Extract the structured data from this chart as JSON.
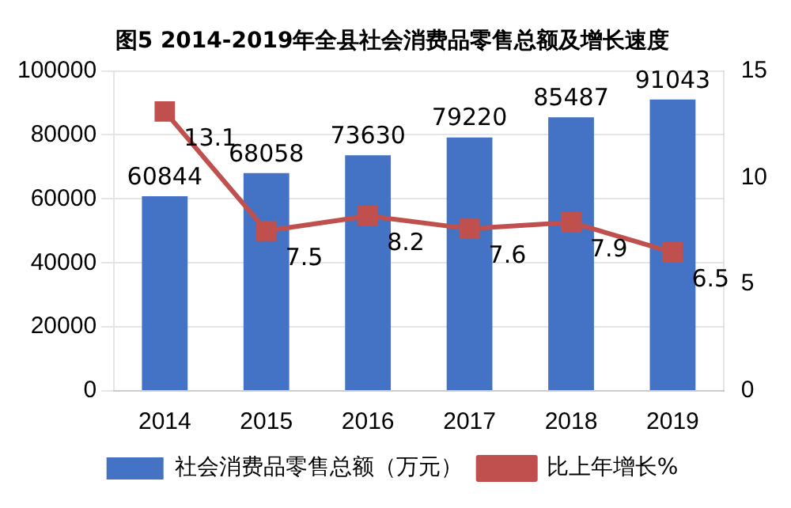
{
  "chart_data": {
    "type": "bar",
    "title": "图5 2014-2019年全县社会消费品零售总额及增长速度",
    "categories": [
      "2014",
      "2015",
      "2016",
      "2017",
      "2018",
      "2019"
    ],
    "series": [
      {
        "name": "社会消费品零售总额（万元）",
        "color": "#4472c4",
        "values": [
          60844,
          68058,
          73630,
          79220,
          85487,
          91043
        ]
      },
      {
        "name": "比上年增长%",
        "type": "line",
        "axis": "y2",
        "color": "#c0504d",
        "values": [
          13.1,
          7.5,
          8.2,
          7.6,
          7.9,
          6.5
        ]
      }
    ],
    "ylim": [
      0,
      100000
    ],
    "yticks": [
      0,
      20000,
      40000,
      60000,
      80000,
      100000
    ],
    "y2lim": [
      0,
      15
    ],
    "y2ticks": [
      0,
      5,
      10,
      15
    ],
    "grid": "y",
    "legend": "bottom",
    "marker": "square",
    "line_style": "solid",
    "data_labels": true
  }
}
